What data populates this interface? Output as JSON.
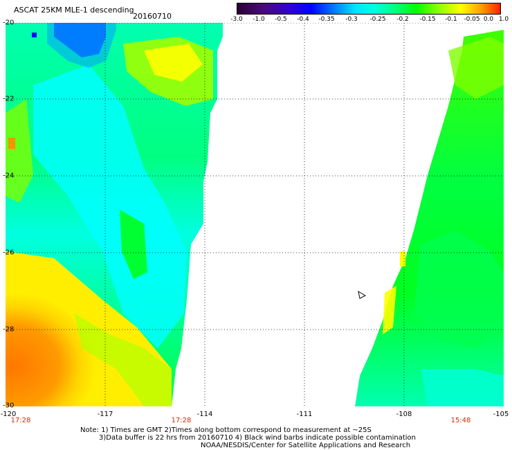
{
  "header": {
    "title": "ASCAT 25KM MLE-1 descending",
    "date": "20160710"
  },
  "colorbar": {
    "ticks": [
      "-3.0",
      "-1.0",
      "-0.5",
      "-0.4",
      "-0.35",
      "-0.3",
      "-0.25",
      "-0.2",
      "-0.15",
      "-0.1",
      "-0.05",
      "0.0",
      "1.0"
    ],
    "colors": [
      "#2b0033",
      "#4a0a7a",
      "#3300cc",
      "#0000ff",
      "#0066ff",
      "#00c8ff",
      "#00ffff",
      "#00ff88",
      "#00ff00",
      "#99ff00",
      "#ffff00",
      "#ff9900",
      "#ff2200"
    ]
  },
  "axes": {
    "y_ticks": [
      "-20",
      "-22",
      "-24",
      "-26",
      "-28",
      "-30"
    ],
    "x_ticks": [
      "-120",
      "-117",
      "-114",
      "-111",
      "-108",
      "-105"
    ]
  },
  "times": [
    "17:28",
    "17:28",
    "15:48"
  ],
  "notes": [
    "Note: 1) Times are GMT 2)Times along bottom correspond to measurement at ~25S",
    "3)Data buffer is 22 hrs from 20160710 4) Black wind barbs indicate possible contamination",
    "NOAA/NESDIS/Center for Satellite Applications and Research"
  ]
}
